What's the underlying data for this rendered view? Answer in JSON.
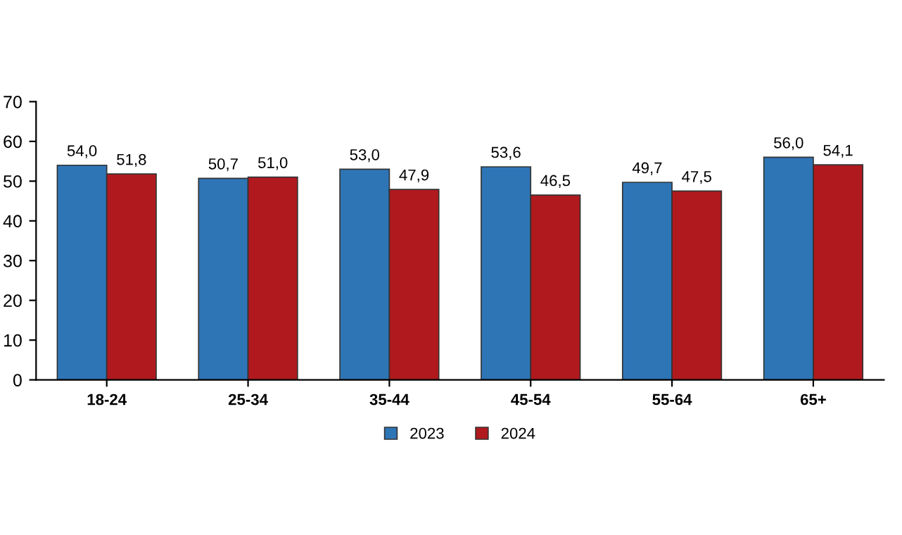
{
  "chart_data": {
    "type": "bar",
    "categories": [
      "18-24",
      "25-34",
      "35-44",
      "45-54",
      "55-64",
      "65+"
    ],
    "series": [
      {
        "name": "2023",
        "color": "#2e75b6",
        "values": [
          54.0,
          50.7,
          53.0,
          53.6,
          49.7,
          56.0
        ],
        "value_labels": [
          "54,0",
          "50,7",
          "53,0",
          "53,6",
          "49,7",
          "56,0"
        ]
      },
      {
        "name": "2024",
        "color": "#b0191e",
        "values": [
          51.8,
          51.0,
          47.9,
          46.5,
          47.5,
          54.1
        ],
        "value_labels": [
          "51,8",
          "51,0",
          "47,9",
          "46,5",
          "47,5",
          "54,1"
        ]
      }
    ],
    "ylim": [
      0,
      70
    ],
    "yticks": [
      0,
      10,
      20,
      30,
      40,
      50,
      60,
      70
    ],
    "grid": false,
    "legend": "bottom"
  }
}
